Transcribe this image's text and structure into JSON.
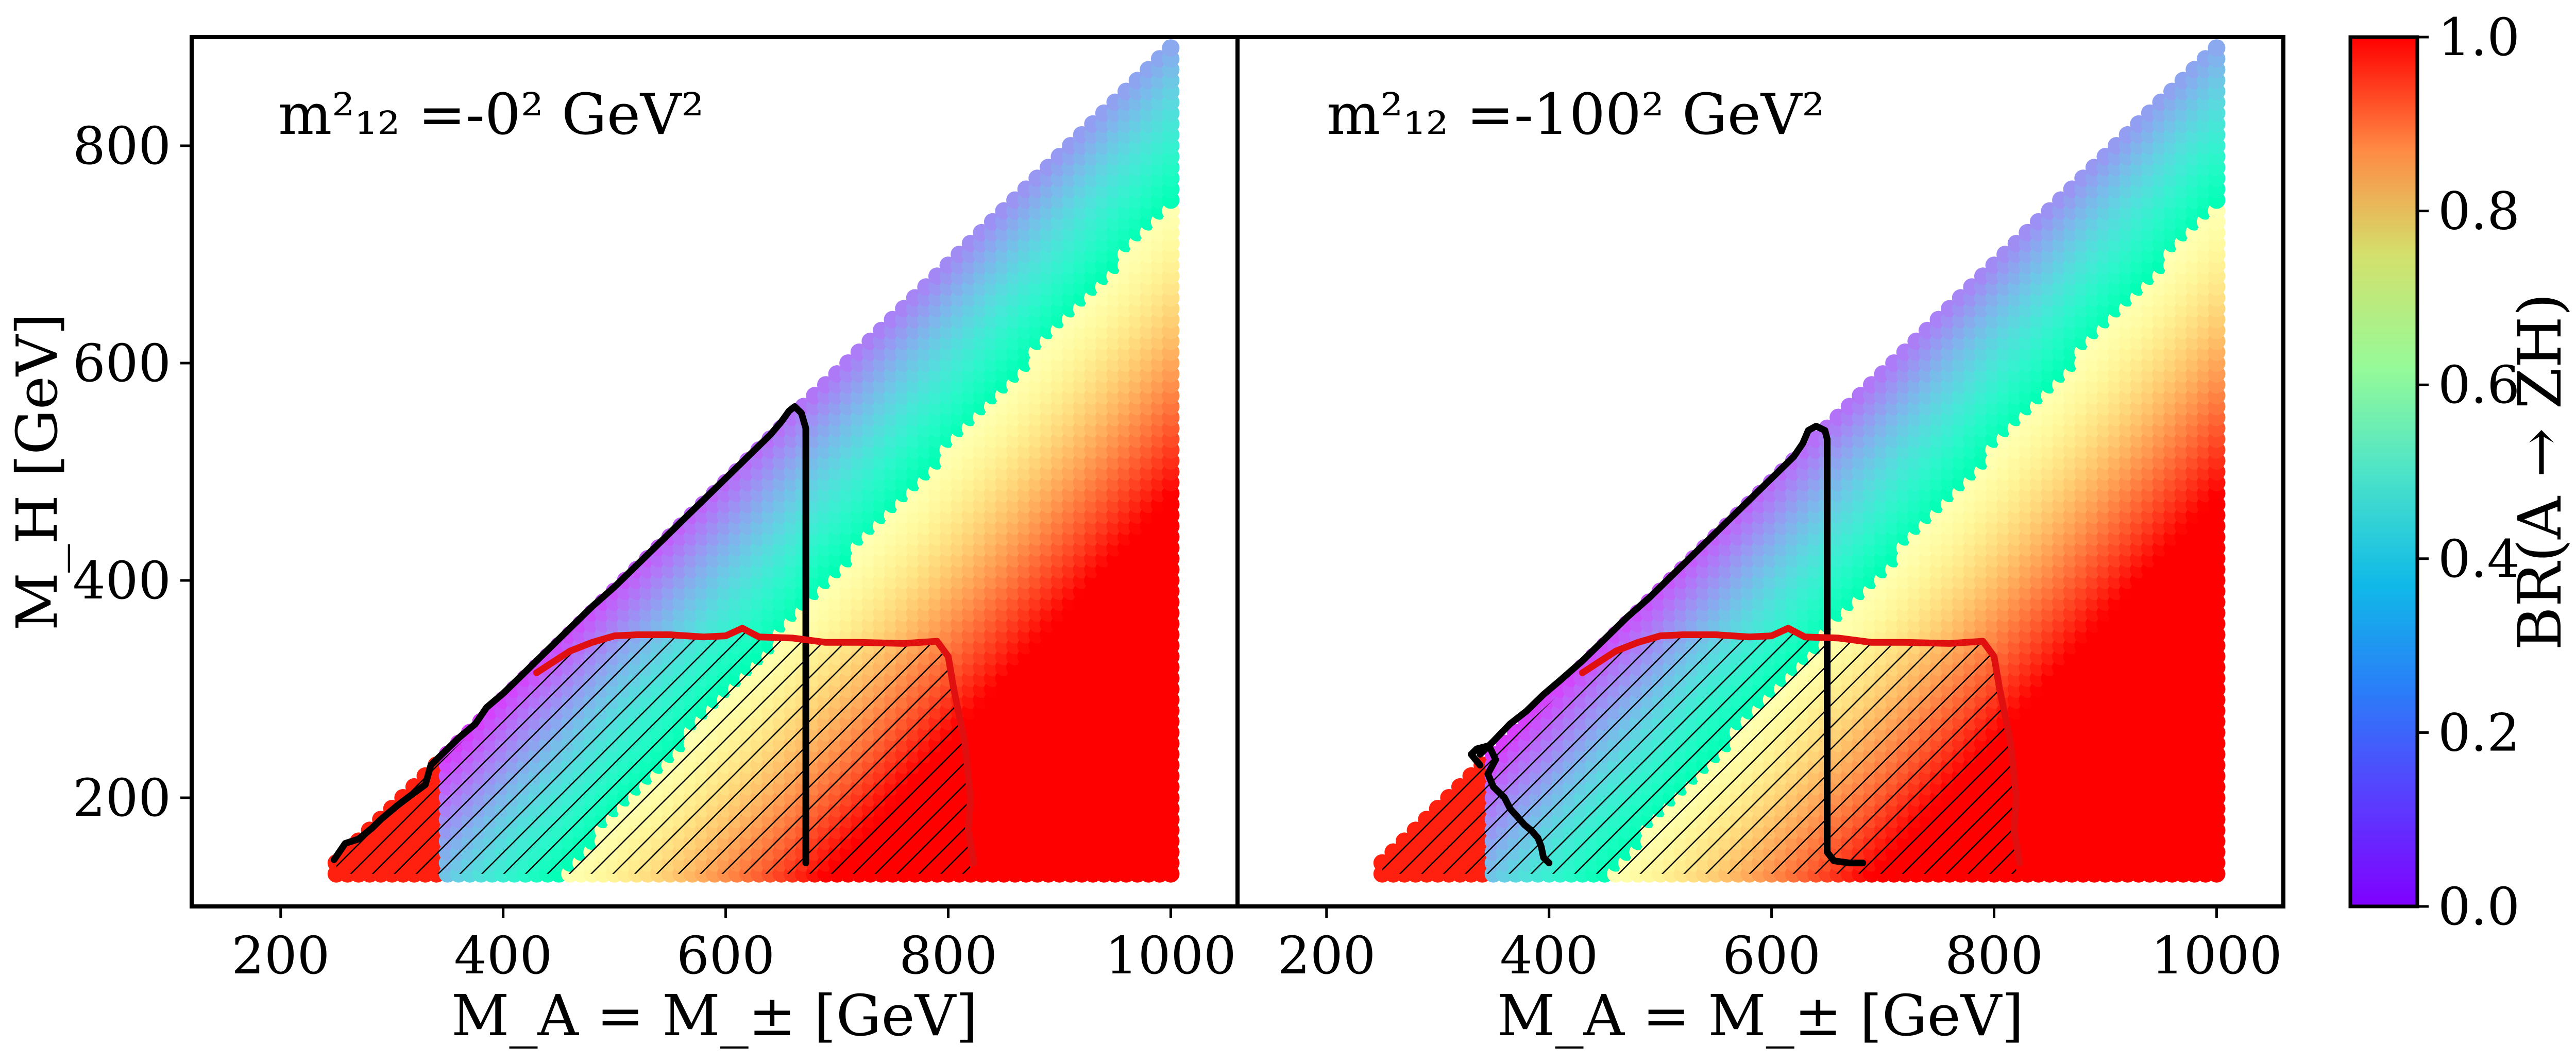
{
  "chart_data": [
    {
      "type": "scatter",
      "panel_annotation": "m²₁₂ =-0² GeV²",
      "xlabel": "M_A = M_± [GeV]",
      "ylabel": "M_H [GeV]",
      "xlim": [
        120,
        1060
      ],
      "ylim": [
        100,
        900
      ],
      "xticks": [
        200,
        400,
        600,
        800,
        1000
      ],
      "yticks": [
        200,
        400,
        600,
        800
      ],
      "grid": false,
      "scan": {
        "x_range": [
          250,
          1000
        ],
        "y_range": [
          130,
          890
        ],
        "x_step": 10,
        "y_step": 10,
        "domain": "M_H <= M_A - 110"
      },
      "color_metric": "BR(A → ZH)",
      "contours": [
        {
          "name": "black",
          "color": "#000000",
          "points": [
            [
              248,
              143
            ],
            [
              258,
              158
            ],
            [
              270,
              162
            ],
            [
              282,
              172
            ],
            [
              290,
              180
            ],
            [
              305,
              193
            ],
            [
              318,
              203
            ],
            [
              330,
              212
            ],
            [
              335,
              230
            ],
            [
              345,
              240
            ],
            [
              360,
              255
            ],
            [
              375,
              268
            ],
            [
              385,
              283
            ],
            [
              400,
              296
            ],
            [
              420,
              316
            ],
            [
              440,
              336
            ],
            [
              460,
              356
            ],
            [
              480,
              376
            ],
            [
              500,
              394
            ],
            [
              520,
              414
            ],
            [
              540,
              434
            ],
            [
              560,
              454
            ],
            [
              580,
              474
            ],
            [
              600,
              494
            ],
            [
              620,
              514
            ],
            [
              640,
              534
            ],
            [
              650,
              546
            ],
            [
              657,
              556
            ],
            [
              662,
              560
            ],
            [
              668,
              554
            ],
            [
              672,
              540
            ],
            [
              672,
              140
            ]
          ]
        },
        {
          "name": "red",
          "color": "#e01010",
          "points": [
            [
              430,
              315
            ],
            [
              445,
              325
            ],
            [
              460,
              335
            ],
            [
              480,
              343
            ],
            [
              500,
              349
            ],
            [
              520,
              350
            ],
            [
              550,
              350
            ],
            [
              580,
              348
            ],
            [
              600,
              349
            ],
            [
              615,
              356
            ],
            [
              630,
              348
            ],
            [
              660,
              347
            ],
            [
              690,
              343
            ],
            [
              720,
              343
            ],
            [
              760,
              342
            ],
            [
              790,
              344
            ],
            [
              800,
              330
            ],
            [
              805,
              300
            ],
            [
              815,
              250
            ],
            [
              820,
              200
            ],
            [
              818,
              170
            ],
            [
              823,
              140
            ]
          ]
        }
      ],
      "hatched_regions": [
        {
          "name": "red-hatch",
          "x_range": [
            250,
            340
          ]
        },
        {
          "name": "main-hatch",
          "x_range": [
            340,
            820
          ]
        }
      ]
    },
    {
      "type": "scatter",
      "panel_annotation": "m²₁₂ =-100² GeV²",
      "xlabel": "M_A = M_± [GeV]",
      "ylabel": "",
      "xlim": [
        120,
        1060
      ],
      "ylim": [
        100,
        900
      ],
      "xticks": [
        200,
        400,
        600,
        800,
        1000
      ],
      "yticks": [],
      "grid": false,
      "scan": {
        "x_range": [
          250,
          1000
        ],
        "y_range": [
          130,
          890
        ],
        "x_step": 10,
        "y_step": 10,
        "domain": "M_H <= M_A - 110"
      },
      "color_metric": "BR(A → ZH)",
      "contours": [
        {
          "name": "black",
          "color": "#000000",
          "points": [
            [
              338,
              230
            ],
            [
              330,
              240
            ],
            [
              335,
              245
            ],
            [
              346,
              248
            ],
            [
              352,
              235
            ],
            [
              345,
              222
            ],
            [
              350,
              210
            ],
            [
              360,
              200
            ],
            [
              365,
              190
            ],
            [
              372,
              182
            ],
            [
              378,
              175
            ],
            [
              384,
              170
            ],
            [
              390,
              163
            ],
            [
              393,
              155
            ],
            [
              395,
              145
            ],
            [
              400,
              140
            ]
          ]
        },
        {
          "name": "black-upper",
          "color": "#000000",
          "points": [
            [
              338,
              240
            ],
            [
              350,
              252
            ],
            [
              365,
              268
            ],
            [
              380,
              280
            ],
            [
              395,
              295
            ],
            [
              410,
              308
            ],
            [
              430,
              326
            ],
            [
              450,
              346
            ],
            [
              470,
              366
            ],
            [
              490,
              384
            ],
            [
              510,
              404
            ],
            [
              530,
              424
            ],
            [
              550,
              444
            ],
            [
              570,
              464
            ],
            [
              590,
              484
            ],
            [
              610,
              504
            ],
            [
              620,
              514
            ],
            [
              628,
              526
            ],
            [
              633,
              538
            ],
            [
              640,
              542
            ],
            [
              648,
              538
            ],
            [
              650,
              530
            ],
            [
              650,
              150
            ],
            [
              656,
              142
            ],
            [
              670,
              140
            ],
            [
              682,
              140
            ]
          ]
        },
        {
          "name": "red",
          "color": "#e01010",
          "points": [
            [
              430,
              315
            ],
            [
              445,
              325
            ],
            [
              460,
              335
            ],
            [
              480,
              343
            ],
            [
              500,
              349
            ],
            [
              520,
              350
            ],
            [
              550,
              350
            ],
            [
              580,
              348
            ],
            [
              600,
              349
            ],
            [
              615,
              356
            ],
            [
              630,
              348
            ],
            [
              660,
              347
            ],
            [
              690,
              343
            ],
            [
              720,
              343
            ],
            [
              760,
              342
            ],
            [
              790,
              344
            ],
            [
              800,
              330
            ],
            [
              805,
              300
            ],
            [
              815,
              250
            ],
            [
              820,
              200
            ],
            [
              818,
              170
            ],
            [
              823,
              140
            ]
          ]
        }
      ],
      "hatched_regions": [
        {
          "name": "red-hatch",
          "x_range": [
            250,
            345
          ]
        },
        {
          "name": "main-hatch",
          "x_range": [
            345,
            820
          ]
        }
      ]
    }
  ],
  "colorbar": {
    "label": "BR(A → ZH)",
    "range": [
      0.0,
      1.0
    ],
    "ticks": [
      "0.0",
      "0.2",
      "0.4",
      "0.6",
      "0.8",
      "1.0"
    ],
    "colormap": "rainbow"
  },
  "text": {
    "panel1_annotation": "m²₁₂ =-0² GeV²",
    "panel2_annotation": "m²₁₂ =-100² GeV²",
    "xlabel": "M_A = M_± [GeV]",
    "ylabel": "M_H [GeV]",
    "cbar_label": "BR(A → ZH)"
  }
}
